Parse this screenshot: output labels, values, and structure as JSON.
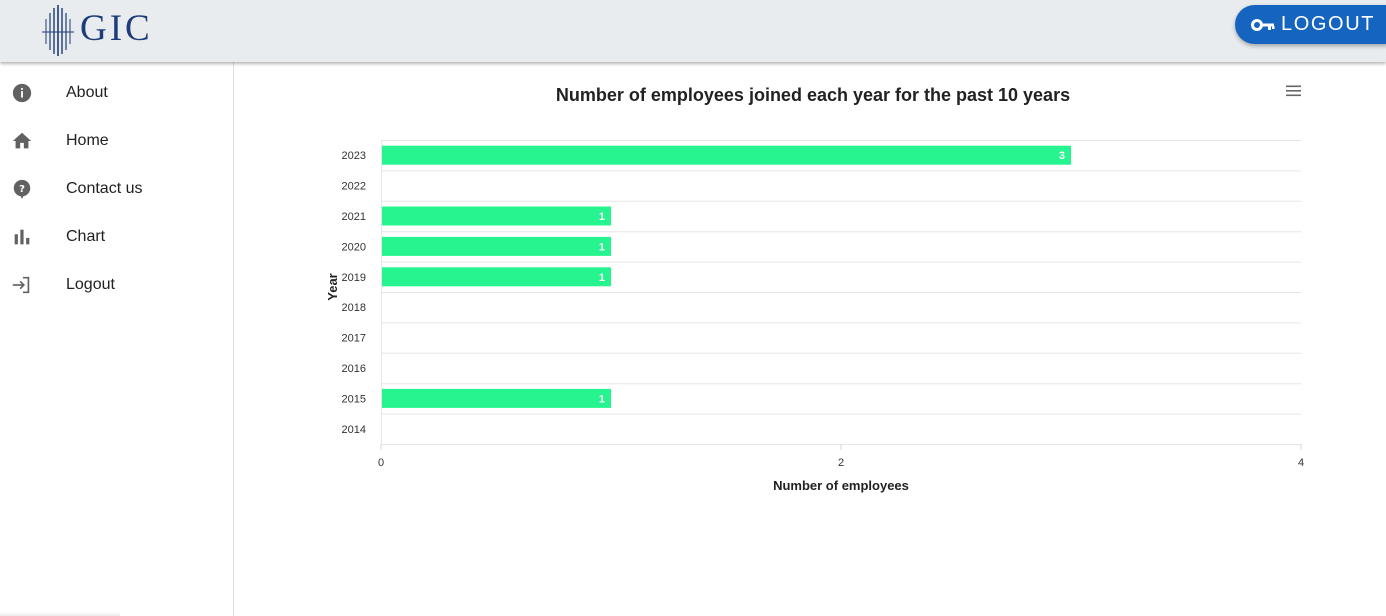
{
  "header": {
    "logo_text": "GIC",
    "logout_label": "LOGOUT"
  },
  "sidebar": {
    "items": [
      {
        "label": "About",
        "icon": "info-icon"
      },
      {
        "label": "Home",
        "icon": "home-icon"
      },
      {
        "label": "Contact us",
        "icon": "help-icon"
      },
      {
        "label": "Chart",
        "icon": "bar-chart-icon"
      },
      {
        "label": "Logout",
        "icon": "login-arrow-icon"
      }
    ]
  },
  "colors": {
    "bar": "#26f58f",
    "accent": "#1565c0",
    "logo": "#1e3c78",
    "header_bg": "#e8ecee"
  },
  "chart_data": {
    "type": "bar",
    "orientation": "horizontal",
    "title": "Number of employees joined each year for the past 10 years",
    "xlabel": "Number of employees",
    "ylabel": "Year",
    "categories": [
      "2023",
      "2022",
      "2021",
      "2020",
      "2019",
      "2018",
      "2017",
      "2016",
      "2015",
      "2014"
    ],
    "values": [
      3,
      0,
      1,
      1,
      1,
      0,
      0,
      0,
      1,
      0
    ],
    "data_labels": [
      "3",
      "",
      "1",
      "1",
      "1",
      "",
      "",
      "",
      "1",
      ""
    ],
    "xlim": [
      0,
      4
    ],
    "x_ticks": [
      "0",
      "2",
      "4"
    ],
    "grid": true,
    "legend": "none"
  }
}
